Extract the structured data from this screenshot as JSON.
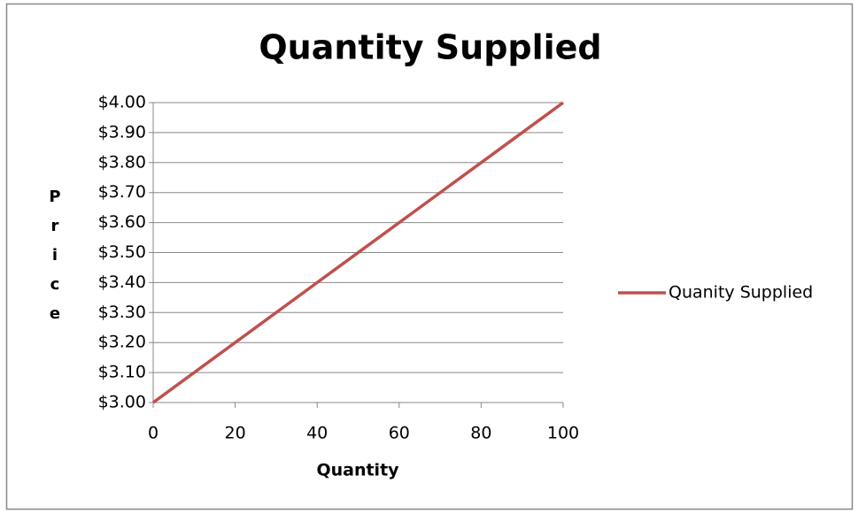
{
  "chart_data": {
    "type": "line",
    "title": "Quantity Supplied",
    "x_label": "Quantity",
    "y_label": "Price",
    "x": [
      0,
      20,
      40,
      60,
      80,
      100
    ],
    "series": [
      {
        "name": "Quanity Supplied",
        "color": "#c0504d",
        "values": [
          3.0,
          3.2,
          3.4,
          3.6,
          3.8,
          4.0
        ]
      }
    ],
    "xlim": [
      0,
      100
    ],
    "xticks": [
      0,
      20,
      40,
      60,
      80,
      100
    ],
    "ylim": [
      3.0,
      4.0
    ],
    "yticks": [
      {
        "value": 3.0,
        "label": "$3.00"
      },
      {
        "value": 3.1,
        "label": "$3.10"
      },
      {
        "value": 3.2,
        "label": "$3.20"
      },
      {
        "value": 3.3,
        "label": "$3.30"
      },
      {
        "value": 3.4,
        "label": "$3.40"
      },
      {
        "value": 3.5,
        "label": "$3.50"
      },
      {
        "value": 3.6,
        "label": "$3.60"
      },
      {
        "value": 3.7,
        "label": "$3.70"
      },
      {
        "value": 3.8,
        "label": "$3.80"
      },
      {
        "value": 3.9,
        "label": "$3.90"
      },
      {
        "value": 4.0,
        "label": "$4.00"
      }
    ],
    "grid": true,
    "legend": "right"
  }
}
